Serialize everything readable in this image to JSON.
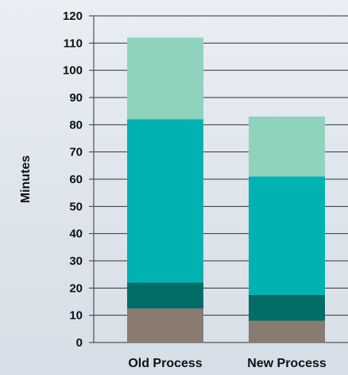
{
  "chart_data": {
    "type": "bar",
    "stacked": true,
    "categories": [
      "Old Process",
      "New Process"
    ],
    "series": [
      {
        "values": [
          12.5,
          8
        ],
        "color": "#8a7b70"
      },
      {
        "values": [
          9.5,
          9.5
        ],
        "color": "#006e66"
      },
      {
        "values": [
          60,
          43.5
        ],
        "color": "#00b2b2"
      },
      {
        "values": [
          30,
          22
        ],
        "color": "#8fd3bd"
      }
    ],
    "xlabel": "",
    "ylabel": "Minutes",
    "ylim": [
      0,
      120
    ],
    "yticks": [
      0,
      10,
      20,
      30,
      40,
      50,
      60,
      70,
      80,
      90,
      100,
      110,
      120
    ],
    "grid": true,
    "legend": "none"
  }
}
